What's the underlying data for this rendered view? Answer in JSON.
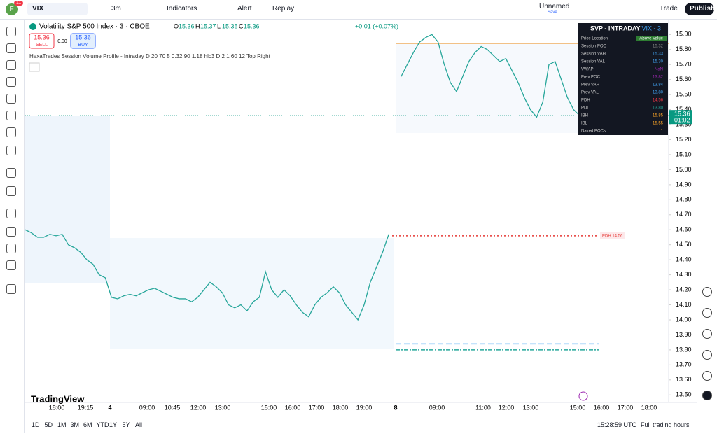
{
  "toolbar": {
    "symbol": "VIX",
    "interval": "3m",
    "indicators": "Indicators",
    "alert": "Alert",
    "replay": "Replay",
    "layout_name": "Unnamed",
    "layout_state": "Save",
    "trade": "Trade",
    "publish": "Publish",
    "badge": "11"
  },
  "legend": {
    "title": "Volatility S&P 500 Index · 3 · CBOE",
    "ohlc": [
      {
        "key": "O",
        "value": "15.36"
      },
      {
        "key": "H",
        "value": "15.37"
      },
      {
        "key": "L",
        "value": "15.35"
      },
      {
        "key": "C",
        "value": "15.36"
      }
    ],
    "change": "+0.01 (+0.07%)",
    "sell_price": "15.36",
    "sell": "SELL",
    "spread": "0.00",
    "buy_price": "15.36",
    "buy": "BUY",
    "indicator": "HexaTrades Session Volume Profile - Intraday D 20 70 5 0.32 90 1.18 hlc3 D 2 1 60 12 Top Right"
  },
  "chart_data": {
    "type": "line",
    "color": "#26a69a",
    "values": [
      14.6,
      14.58,
      14.55,
      14.55,
      14.57,
      14.56,
      14.57,
      14.5,
      14.48,
      14.45,
      14.4,
      14.37,
      14.3,
      14.28,
      14.15,
      14.14,
      14.16,
      14.17,
      14.16,
      14.18,
      14.2,
      14.21,
      14.19,
      14.17,
      14.15,
      14.14,
      14.14,
      14.12,
      14.15,
      14.2,
      14.25,
      14.22,
      14.18,
      14.1,
      14.08,
      14.1,
      14.06,
      14.12,
      14.15,
      14.32,
      14.2,
      14.15,
      14.2,
      14.16,
      14.1,
      14.05,
      14.02,
      14.1,
      14.15,
      14.18,
      14.22,
      14.18,
      14.1,
      14.05,
      14.0,
      14.1,
      14.25,
      14.35,
      14.45,
      14.57,
      null,
      15.62,
      15.7,
      15.78,
      15.85,
      15.88,
      15.9,
      15.85,
      15.7,
      15.58,
      15.52,
      15.62,
      15.72,
      15.78,
      15.82,
      15.8,
      15.76,
      15.72,
      15.74,
      15.66,
      15.58,
      15.48,
      15.4,
      15.35,
      15.45,
      15.7,
      15.72,
      15.6,
      15.48,
      15.4,
      15.36
    ],
    "ylim": [
      13.45,
      15.99
    ],
    "yticks": [
      {
        "value": 13.5,
        "label": "13.50"
      },
      {
        "value": 13.6,
        "label": "13.60"
      },
      {
        "value": 13.7,
        "label": "13.70"
      },
      {
        "value": 13.8,
        "label": "13.80"
      },
      {
        "value": 13.9,
        "label": "13.90"
      },
      {
        "value": 14,
        "label": "14.00"
      },
      {
        "value": 14.1,
        "label": "14.10"
      },
      {
        "value": 14.2,
        "label": "14.20"
      },
      {
        "value": 14.3,
        "label": "14.30"
      },
      {
        "value": 14.4,
        "label": "14.40"
      },
      {
        "value": 14.5,
        "label": "14.50"
      },
      {
        "value": 14.6,
        "label": "14.60"
      },
      {
        "value": 14.7,
        "label": "14.70"
      },
      {
        "value": 14.8,
        "label": "14.80"
      },
      {
        "value": 14.9,
        "label": "14.90"
      },
      {
        "value": 15,
        "label": "15.00"
      },
      {
        "value": 15.1,
        "label": "15.10"
      },
      {
        "value": 15.2,
        "label": "15.20"
      },
      {
        "value": 15.3,
        "label": "15.30"
      },
      {
        "value": 15.4,
        "label": "15.40"
      },
      {
        "value": 15.5,
        "label": "15.50"
      },
      {
        "value": 15.6,
        "label": "15.60"
      },
      {
        "value": 15.7,
        "label": "15.70"
      },
      {
        "value": 15.8,
        "label": "15.80"
      },
      {
        "value": 15.9,
        "label": "15.90"
      }
    ],
    "time_labels": [
      "18:00",
      "19:15",
      "4",
      "09:00",
      "10:45",
      "12:00",
      "13:00",
      "15:00",
      "16:00",
      "17:00",
      "18:00",
      "19:00",
      "8",
      "09:00",
      "11:00",
      "12:00",
      "13:00",
      "15:00",
      "16:00",
      "17:00",
      "18:00"
    ],
    "last_price": {
      "value": 15.36,
      "label": "15.36",
      "countdown": "01:02"
    },
    "levels": [
      {
        "value": 14.56,
        "label": "PDH 14.56",
        "color": "#e53935"
      },
      {
        "value": 13.84,
        "color": "#64b5f6"
      },
      {
        "value": 13.8,
        "color": "#26a69a"
      },
      {
        "value": 15.84,
        "color": "#f0a040"
      },
      {
        "value": 15.55,
        "color": "#f0a040"
      }
    ]
  },
  "svp_table": {
    "title": "SVP - INTRADAY",
    "symbol": "VIX - 3",
    "rows": [
      [
        "Price Location",
        "Above Value"
      ],
      [
        "Session POC",
        "15.32"
      ],
      [
        "Session VAH",
        "15.33"
      ],
      [
        "Session VAL",
        "15.30"
      ],
      [
        "VWAP",
        "NaN"
      ],
      [
        "Prev POC",
        "13.82"
      ],
      [
        "Prev VAH",
        "13.84"
      ],
      [
        "Prev VAL",
        "13.80"
      ],
      [
        "PDH",
        "14.56"
      ],
      [
        "PDL",
        "13.80"
      ],
      [
        "IBH",
        "15.85"
      ],
      [
        "IBL",
        "15.55"
      ],
      [
        "Naked POCs",
        "1"
      ]
    ]
  },
  "logo": "TradingView",
  "bottom": {
    "ranges": [
      "1D",
      "5D",
      "1M",
      "3M",
      "6M",
      "YTD",
      "1Y",
      "5Y",
      "All"
    ],
    "clock": "15:28:59 UTC",
    "session": "Full trading hours"
  }
}
